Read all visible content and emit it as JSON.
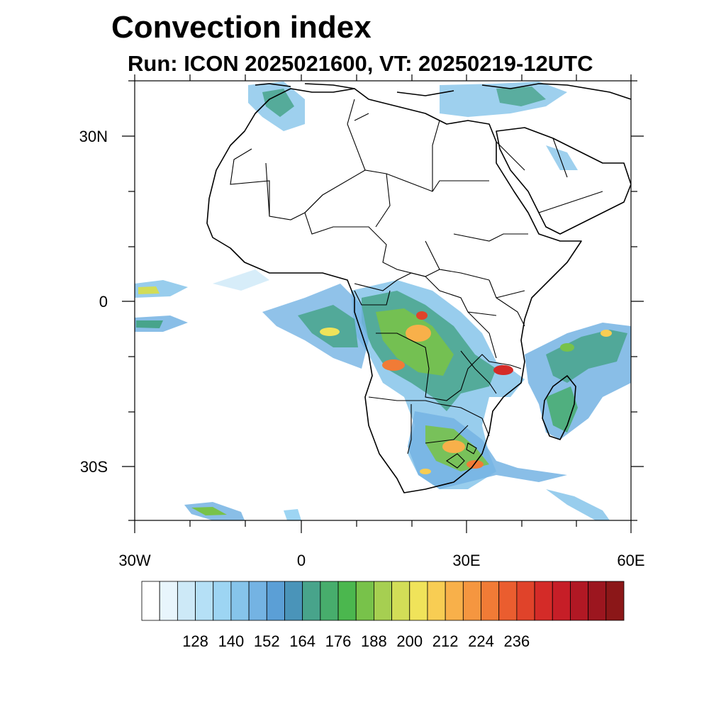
{
  "title": "Convection index",
  "subtitle": "Run: ICON 2025021600,  VT: 20250219-12UTC",
  "map": {
    "lat_labels": [
      "30N",
      "0",
      "30S"
    ],
    "lon_labels": [
      "30W",
      "0",
      "30E",
      "60E"
    ]
  },
  "colorbar": {
    "colors": [
      "#ffffff",
      "#e8f5fc",
      "#cde9f7",
      "#b5e0f6",
      "#9dd5f3",
      "#86c4ea",
      "#74b3e3",
      "#5b9fd6",
      "#4a94b9",
      "#48a48b",
      "#47ad6c",
      "#4bb74e",
      "#78c24a",
      "#a6cf51",
      "#d2dd57",
      "#f0e35a",
      "#f8cd53",
      "#f8b04a",
      "#f59640",
      "#f17b36",
      "#ea5d2f",
      "#e0432a",
      "#d42b28",
      "#c61e27",
      "#b11824",
      "#9c161f",
      "#8b1718"
    ],
    "labels": [
      "128",
      "140",
      "152",
      "164",
      "176",
      "188",
      "200",
      "212",
      "224",
      "236"
    ]
  }
}
